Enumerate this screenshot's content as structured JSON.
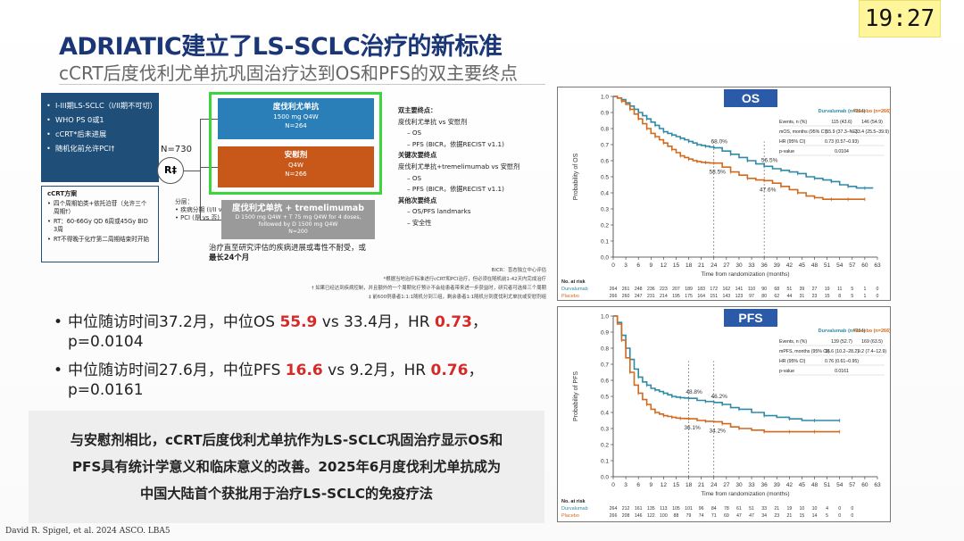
{
  "clock": "19:27",
  "title": "ADRIATIC建立了LS-SCLC治疗的新标准",
  "subtitle": "cCRT后度伐利尤单抗巩固治疗达到OS和PFS的双主要终点",
  "design": {
    "criteria": [
      "I-III期LS-SCLC（I/II期不可切）",
      "WHO PS 0或1",
      "cCRT*后未进展",
      "随机化前允许PCI†"
    ],
    "crt_title": "cCRT方案",
    "crt_items": [
      "四个周期铂类+依托泊苷（允许三个周期†）",
      "RT：60-66Gy QD 6周或45Gy BID 3周",
      "RT不得晚于化疗第二周期结束时开始"
    ],
    "n_total": "N=730",
    "r_label": "R‡",
    "strata_title": "分层：",
    "strata_items": [
      "• 疾病分期 (I/II vs III)",
      "• PCI (是 vs 否)"
    ],
    "arm1": {
      "name": "度伐利尤单抗",
      "dose": "1500 mg Q4W",
      "n": "N=264"
    },
    "arm2": {
      "name": "安慰剂",
      "dose": "Q4W",
      "n": "N=266"
    },
    "arm3": {
      "name": "度伐利尤单抗 + tremelimumab",
      "dose1": "D 1500 mg Q4W + T 75 mg Q4W for 4 doses,",
      "dose2": "followed by D 1500 mg Q4W",
      "n": "N=200"
    },
    "treatment_note": "治疗直至研究评估的疾病进展或毒性不耐受，或",
    "treatment_note_bold": "最长24个月",
    "endpoints": [
      {
        "t": "双主要终点：",
        "k": "hd"
      },
      {
        "t": "度伐利尤单抗 vs 安慰剂",
        "k": ""
      },
      {
        "t": "–   OS",
        "k": "sub"
      },
      {
        "t": "–   PFS (BICR，依据RECIST v1.1)",
        "k": "sub"
      },
      {
        "t": "关键次要终点",
        "k": "hd"
      },
      {
        "t": "度伐利尤单抗+tremelimumab vs 安慰剂",
        "k": ""
      },
      {
        "t": "–   OS",
        "k": "sub"
      },
      {
        "t": "–   PFS (BICR，依据RECIST v1.1)",
        "k": "sub"
      },
      {
        "t": "其他次要终点",
        "k": "hd"
      },
      {
        "t": "–   OS/PFS landmarks",
        "k": "sub"
      },
      {
        "t": "–   安全性",
        "k": "sub"
      }
    ],
    "footnotes": [
      "BICR：盲态独立中心评估",
      "*根据当地治疗标准进行cCRT和PCI治疗，但必须在随机前1-42天内完成治疗",
      "† 如果已经达到疾病控制，并且额外的一个周期化疗预计不会给患者带来进一步获益时，研究者可选择三个周期",
      "‡ 前600例患者1:1:1随机分到三组，剩余患者1:1随机分到度伐利尤单抗或安慰剂组"
    ]
  },
  "bullets": {
    "b1": {
      "pre": "中位随访时间37.2月，中位OS ",
      "v1": "55.9",
      "mid": " vs 33.4月，HR ",
      "v2": "0.73",
      "post": "，",
      "line2": "p=0.0104"
    },
    "b2": {
      "pre": "中位随访时间27.6月，中位PFS ",
      "v1": "16.6",
      "mid": " vs 9.2月，HR ",
      "v2": "0.76",
      "post": "，",
      "line2": "p=0.0161"
    }
  },
  "summary": [
    "与安慰剂相比，cCRT后度伐利尤单抗作为LS-SCLC巩固治疗显示OS和",
    "PFS具有统计学意义和临床意义的改善。2025年6月度伐利尤单抗成为",
    "中国大陆首个获批用于治疗LS-SCLC的免疫疗法"
  ],
  "citation": "David R. Spigel, et al. 2024 ASCO. LBA5",
  "colors": {
    "durvalumab": "#2f8aa6",
    "placebo": "#d2691e",
    "title": "#1a3677",
    "highlight": "#d42a2a"
  },
  "chart_data": [
    {
      "type": "line",
      "title": "OS",
      "xlabel": "Time from randomization (months)",
      "ylabel": "Probability of OS",
      "xlim": [
        0,
        63
      ],
      "ylim": [
        0,
        1.0
      ],
      "xticks": [
        0,
        3,
        6,
        9,
        12,
        15,
        18,
        21,
        24,
        27,
        30,
        33,
        36,
        39,
        42,
        45,
        48,
        51,
        54,
        57,
        60,
        63
      ],
      "yticks": [
        0,
        0.1,
        0.2,
        0.3,
        0.4,
        0.5,
        0.6,
        0.7,
        0.8,
        0.9,
        1.0
      ],
      "landmarks": [
        24,
        36
      ],
      "annotations": [
        {
          "text": "68.0%",
          "x": 24,
          "y": 0.68,
          "series": "Durvalumab"
        },
        {
          "text": "58.5%",
          "x": 24,
          "y": 0.585,
          "series": "Placebo"
        },
        {
          "text": "56.5%",
          "x": 36,
          "y": 0.565,
          "series": "Durvalumab"
        },
        {
          "text": "47.6%",
          "x": 36,
          "y": 0.476,
          "series": "Placebo"
        }
      ],
      "series": [
        {
          "name": "Durvalumab",
          "x": [
            0,
            1,
            2,
            3,
            4,
            5,
            6,
            7,
            8,
            9,
            10,
            11,
            12,
            13,
            14,
            15,
            16,
            17,
            18,
            19,
            20,
            21,
            22,
            23,
            24,
            26,
            28,
            30,
            32,
            34,
            36,
            38,
            40,
            42,
            44,
            46,
            48,
            50,
            52,
            54,
            56,
            58,
            60,
            62
          ],
          "y": [
            1.0,
            0.99,
            0.98,
            0.96,
            0.94,
            0.92,
            0.9,
            0.88,
            0.86,
            0.84,
            0.82,
            0.8,
            0.78,
            0.77,
            0.76,
            0.75,
            0.74,
            0.73,
            0.72,
            0.71,
            0.7,
            0.695,
            0.69,
            0.685,
            0.68,
            0.66,
            0.64,
            0.62,
            0.6,
            0.58,
            0.565,
            0.55,
            0.54,
            0.53,
            0.52,
            0.5,
            0.49,
            0.48,
            0.47,
            0.45,
            0.44,
            0.43,
            0.43,
            0.43
          ]
        },
        {
          "name": "Placebo",
          "x": [
            0,
            1,
            2,
            3,
            4,
            5,
            6,
            7,
            8,
            9,
            10,
            11,
            12,
            13,
            14,
            15,
            16,
            17,
            18,
            19,
            20,
            21,
            22,
            23,
            24,
            26,
            28,
            30,
            32,
            34,
            36,
            38,
            40,
            42,
            44,
            46,
            48,
            50,
            52,
            54,
            56,
            58,
            60
          ],
          "y": [
            1.0,
            0.99,
            0.97,
            0.95,
            0.92,
            0.89,
            0.86,
            0.83,
            0.8,
            0.77,
            0.75,
            0.73,
            0.71,
            0.69,
            0.67,
            0.65,
            0.63,
            0.62,
            0.61,
            0.6,
            0.595,
            0.59,
            0.588,
            0.586,
            0.585,
            0.56,
            0.53,
            0.51,
            0.49,
            0.48,
            0.476,
            0.46,
            0.44,
            0.42,
            0.4,
            0.38,
            0.37,
            0.36,
            0.36,
            0.36,
            0.36,
            0.36,
            0.36
          ]
        }
      ],
      "table": {
        "header": [
          "",
          "Durvalumab (n=264)",
          "Placebo (n=266)"
        ],
        "rows": [
          [
            "Events, n (%)",
            "115 (43.6)",
            "146 (54.9)"
          ],
          [
            "mOS, months (95% CI)",
            "55.9 (37.3–NE)",
            "33.4 (25.5–39.9)"
          ],
          [
            "HR (95% CI)",
            "0.73 (0.57–0.93)",
            ""
          ],
          [
            "p-value",
            "0.0104",
            ""
          ]
        ]
      },
      "at_risk": {
        "label": "No. at risk",
        "Durvalumab": [
          "264",
          "261",
          "248",
          "236",
          "223",
          "207",
          "189",
          "183",
          "172",
          "162",
          "141",
          "110",
          "90",
          "68",
          "51",
          "39",
          "27",
          "19",
          "11",
          "5",
          "1",
          "0"
        ],
        "Placebo": [
          "266",
          "260",
          "247",
          "231",
          "214",
          "195",
          "175",
          "164",
          "151",
          "143",
          "123",
          "97",
          "80",
          "62",
          "44",
          "31",
          "23",
          "15",
          "8",
          "5",
          "1",
          "0"
        ]
      }
    },
    {
      "type": "line",
      "title": "PFS",
      "xlabel": "Time from randomization (months)",
      "ylabel": "Probability of PFS",
      "xlim": [
        0,
        63
      ],
      "ylim": [
        0,
        1.0
      ],
      "xticks": [
        0,
        3,
        6,
        9,
        12,
        15,
        18,
        21,
        24,
        27,
        30,
        33,
        36,
        39,
        42,
        45,
        48,
        51,
        54,
        57,
        60,
        63
      ],
      "yticks": [
        0,
        0.1,
        0.2,
        0.3,
        0.4,
        0.5,
        0.6,
        0.7,
        0.8,
        0.9,
        1.0
      ],
      "landmarks": [
        18,
        24
      ],
      "annotations": [
        {
          "text": "48.8%",
          "x": 18,
          "y": 0.488,
          "series": "Durvalumab"
        },
        {
          "text": "46.2%",
          "x": 24,
          "y": 0.462,
          "series": "Durvalumab"
        },
        {
          "text": "36.1%",
          "x": 18,
          "y": 0.361,
          "series": "Placebo"
        },
        {
          "text": "34.2%",
          "x": 24,
          "y": 0.342,
          "series": "Placebo"
        }
      ],
      "series": [
        {
          "name": "Durvalumab",
          "x": [
            0,
            1,
            2,
            3,
            4,
            5,
            6,
            7,
            8,
            9,
            10,
            11,
            12,
            13,
            14,
            15,
            16,
            17,
            18,
            20,
            22,
            24,
            26,
            28,
            30,
            33,
            36,
            39,
            42,
            45,
            48,
            51,
            54
          ],
          "y": [
            1.0,
            0.96,
            0.88,
            0.8,
            0.73,
            0.67,
            0.62,
            0.59,
            0.57,
            0.55,
            0.54,
            0.53,
            0.52,
            0.51,
            0.5,
            0.495,
            0.492,
            0.49,
            0.488,
            0.475,
            0.468,
            0.462,
            0.45,
            0.43,
            0.42,
            0.4,
            0.38,
            0.37,
            0.36,
            0.35,
            0.35,
            0.35,
            0.35
          ]
        },
        {
          "name": "Placebo",
          "x": [
            0,
            1,
            2,
            3,
            4,
            5,
            6,
            7,
            8,
            9,
            10,
            11,
            12,
            13,
            14,
            15,
            16,
            17,
            18,
            20,
            22,
            24,
            26,
            28,
            30,
            33,
            36,
            39,
            42,
            45,
            48,
            51,
            54
          ],
          "y": [
            1.0,
            0.95,
            0.85,
            0.74,
            0.65,
            0.57,
            0.52,
            0.48,
            0.45,
            0.42,
            0.4,
            0.39,
            0.38,
            0.375,
            0.37,
            0.365,
            0.363,
            0.362,
            0.361,
            0.35,
            0.345,
            0.342,
            0.33,
            0.31,
            0.3,
            0.29,
            0.28,
            0.28,
            0.28,
            0.28,
            0.28,
            0.28,
            0.28
          ]
        }
      ],
      "table": {
        "header": [
          "",
          "Durvalumab (n=264)",
          "Placebo (n=266)"
        ],
        "rows": [
          [
            "Events, n (%)",
            "139 (52.7)",
            "169 (63.5)"
          ],
          [
            "mPFS, months (95% CI)",
            "16.6 (10.2–28.2)",
            "9.2 (7.4–12.9)"
          ],
          [
            "HR (95% CI)",
            "0.76 (0.61–0.95)",
            ""
          ],
          [
            "p-value",
            "0.0161",
            ""
          ]
        ]
      },
      "at_risk": {
        "label": "No. at risk",
        "Durvalumab": [
          "264",
          "212",
          "161",
          "135",
          "113",
          "105",
          "101",
          "96",
          "84",
          "78",
          "61",
          "51",
          "33",
          "21",
          "19",
          "10",
          "10",
          "4",
          "0",
          "0"
        ],
        "Placebo": [
          "266",
          "208",
          "146",
          "122",
          "100",
          "88",
          "79",
          "74",
          "71",
          "69",
          "47",
          "47",
          "34",
          "23",
          "21",
          "15",
          "14",
          "5",
          "0",
          "0"
        ]
      }
    }
  ]
}
